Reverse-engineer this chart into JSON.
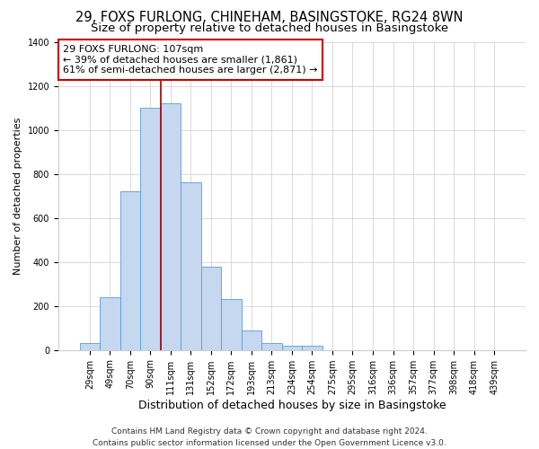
{
  "title": "29, FOXS FURLONG, CHINEHAM, BASINGSTOKE, RG24 8WN",
  "subtitle": "Size of property relative to detached houses in Basingstoke",
  "xlabel": "Distribution of detached houses by size in Basingstoke",
  "ylabel": "Number of detached properties",
  "bar_labels": [
    "29sqm",
    "49sqm",
    "70sqm",
    "90sqm",
    "111sqm",
    "131sqm",
    "152sqm",
    "172sqm",
    "193sqm",
    "213sqm",
    "234sqm",
    "254sqm",
    "275sqm",
    "295sqm",
    "316sqm",
    "336sqm",
    "357sqm",
    "377sqm",
    "398sqm",
    "418sqm",
    "439sqm"
  ],
  "bar_heights": [
    30,
    240,
    720,
    1100,
    1120,
    760,
    380,
    230,
    90,
    30,
    20,
    20,
    0,
    0,
    0,
    0,
    0,
    0,
    0,
    0,
    0
  ],
  "bar_color": "#c5d8f0",
  "bar_edge_color": "#5b9bd5",
  "vline_color": "#990000",
  "annotation_line1": "29 FOXS FURLONG: 107sqm",
  "annotation_line2": "← 39% of detached houses are smaller (1,861)",
  "annotation_line3": "61% of semi-detached houses are larger (2,871) →",
  "annotation_box_facecolor": "#ffffff",
  "annotation_box_edgecolor": "#cc0000",
  "ylim": [
    0,
    1400
  ],
  "yticks": [
    0,
    200,
    400,
    600,
    800,
    1000,
    1200,
    1400
  ],
  "footer_line1": "Contains HM Land Registry data © Crown copyright and database right 2024.",
  "footer_line2": "Contains public sector information licensed under the Open Government Licence v3.0.",
  "bg_color": "#ffffff",
  "grid_color": "#cccccc",
  "title_fontsize": 10.5,
  "subtitle_fontsize": 9.5,
  "xlabel_fontsize": 9,
  "ylabel_fontsize": 8,
  "tick_fontsize": 7,
  "annot_fontsize": 8,
  "footer_fontsize": 6.5
}
